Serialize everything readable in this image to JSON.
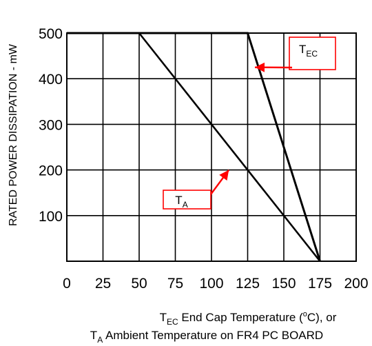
{
  "chart_data": {
    "type": "line",
    "ylabel": "RATED POWER DISSIPATION - mW",
    "xlabel": {
      "line1": {
        "symbol": "T",
        "subscript": "EC",
        "text_before_superscript": " End Cap Temperature (",
        "superscript": "o",
        "text_after_superscript": "C), or"
      },
      "line2": {
        "symbol": "T",
        "subscript": "A",
        "text": "  Ambient Temperature on FR4 PC BOARD"
      }
    },
    "xlim": [
      0,
      200
    ],
    "ylim": [
      0,
      500
    ],
    "x_ticks": [
      0,
      25,
      50,
      75,
      100,
      125,
      150,
      175,
      200
    ],
    "y_ticks": [
      100,
      200,
      300,
      400,
      500
    ],
    "x_tick_labels": [
      "0",
      "25",
      "50",
      "75",
      "100",
      "125",
      "150",
      "175",
      "200"
    ],
    "y_tick_labels": [
      "100",
      "200",
      "300",
      "400",
      "500"
    ],
    "grid": true,
    "series": [
      {
        "name": "TEC",
        "x": [
          0,
          125,
          175
        ],
        "y": [
          500,
          500,
          0
        ]
      },
      {
        "name": "TA",
        "x": [
          50,
          175
        ],
        "y": [
          500,
          0
        ]
      }
    ],
    "annotations": [
      {
        "symbol": "T",
        "subscript": "EC",
        "points_to": [
          130,
          425
        ],
        "color": "#ff0000"
      },
      {
        "symbol": "T",
        "subscript": "A",
        "points_to": [
          112,
          200
        ],
        "color": "#ff0000"
      }
    ],
    "colors": {
      "line": "#000000",
      "grid": "#000000",
      "annotation": "#ff0000"
    }
  }
}
